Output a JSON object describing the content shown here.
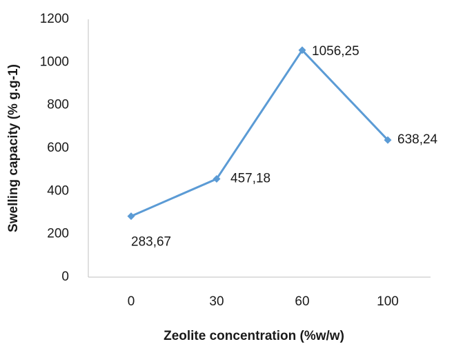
{
  "chart_data": {
    "type": "line",
    "xlabel": "Zeolite concentration (%w/w)",
    "ylabel": "Swelling capacity (% g.g-1)",
    "categories": [
      "0",
      "30",
      "60",
      "100"
    ],
    "series": [
      {
        "name": "Swelling capacity",
        "color": "#5b9bd5",
        "values": [
          283.67,
          457.18,
          1056.25,
          638.24
        ],
        "value_labels": [
          "283,67",
          "457,18",
          "1056,25",
          "638,24"
        ]
      }
    ],
    "ylim": [
      0,
      1200
    ],
    "yticks": [
      0,
      200,
      400,
      600,
      800,
      1000,
      1200
    ],
    "grid": false
  }
}
